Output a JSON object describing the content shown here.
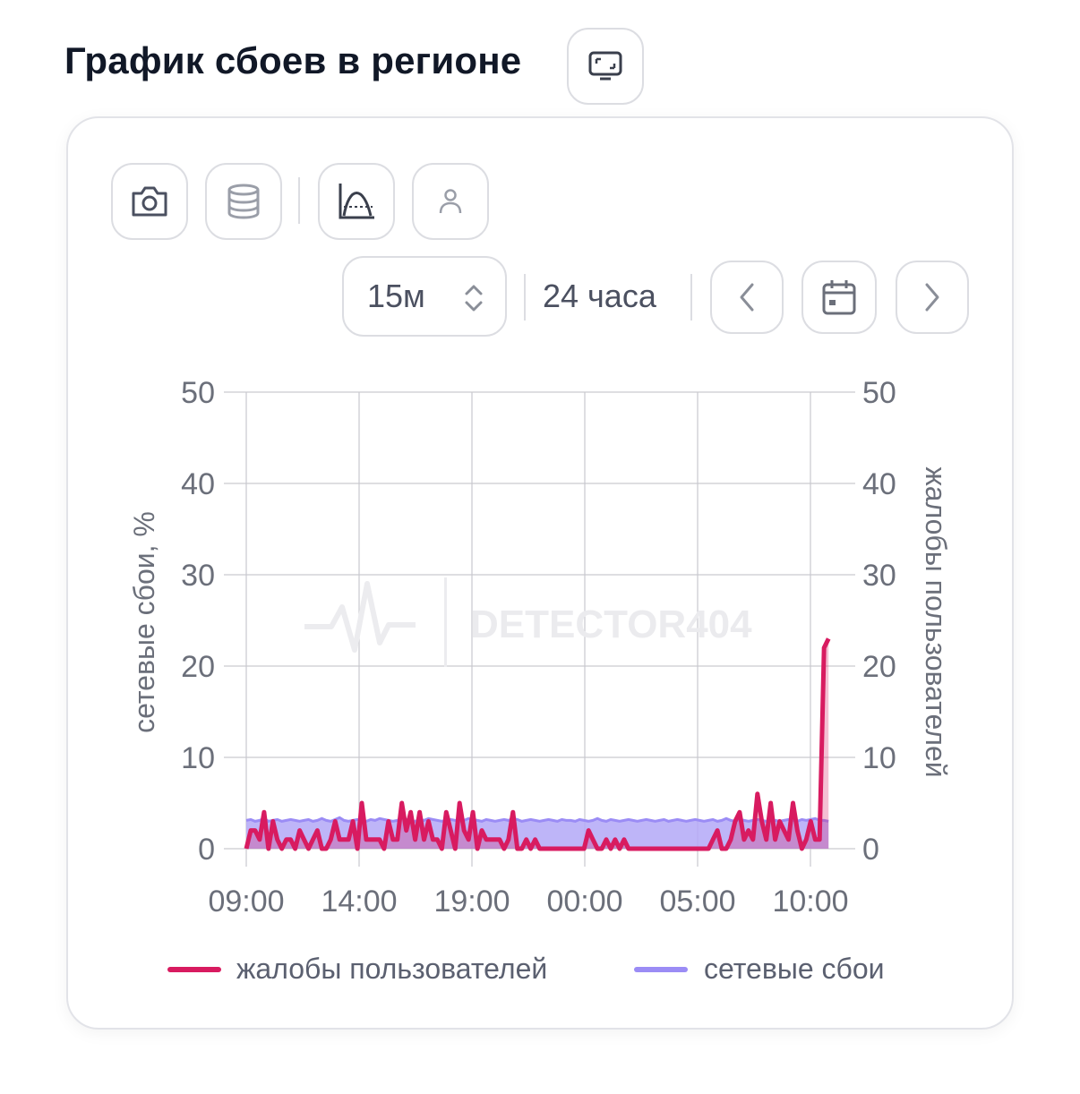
{
  "page": {
    "title": "График сбоев в регионе"
  },
  "toolbar": {
    "period_select": "15м",
    "range_label": "24 часа"
  },
  "icons": {
    "fullscreen": "monitor-icon",
    "screenshot": "camera-icon",
    "data": "database-icon",
    "chart_mode": "chart-curve-icon",
    "user": "user-icon",
    "prev": "chevron-left-icon",
    "calendar": "calendar-icon",
    "next": "chevron-right-icon",
    "select_arrows": "chevron-updown-icon"
  },
  "watermark": "DETECTOR404",
  "colors": {
    "complaints": "#d81b60",
    "outages": "#9b8cf5",
    "outages_fill": "#b3a8f7",
    "grid": "#c9c9cf",
    "text_muted": "#6b6f7a"
  },
  "chart_data": {
    "type": "line",
    "x_tick_labels": [
      "09:00",
      "14:00",
      "19:00",
      "00:00",
      "05:00",
      "10:00"
    ],
    "x_range_hours": [
      0,
      25.8
    ],
    "y_left": {
      "label": "сетевые сбои, %",
      "ylim": [
        0,
        50
      ],
      "ticks": [
        "0",
        "10",
        "20",
        "30",
        "40",
        "50"
      ]
    },
    "y_right": {
      "label": "жалобы пользователей",
      "ylim": [
        0,
        50
      ],
      "ticks": [
        "0",
        "10",
        "20",
        "30",
        "40",
        "50"
      ]
    },
    "grid": true,
    "legend_placement": "bottom",
    "series": [
      {
        "name": "жалобы пользователей",
        "axis": "right",
        "style": "line",
        "values": [
          0,
          2,
          2,
          1,
          4,
          0,
          3,
          1,
          0,
          1,
          1,
          0,
          2,
          1,
          0,
          1,
          2,
          0,
          0,
          1,
          3,
          1,
          1,
          1,
          3,
          0,
          5,
          1,
          1,
          1,
          1,
          0,
          3,
          1,
          1,
          5,
          2,
          4,
          1,
          4,
          1,
          3,
          1,
          1,
          0,
          4,
          2,
          0,
          5,
          2,
          1,
          4,
          0,
          2,
          1,
          1,
          1,
          1,
          0,
          1,
          4,
          0,
          0,
          1,
          0,
          1,
          0,
          0,
          0,
          0,
          0,
          0,
          0,
          0,
          0,
          0,
          0,
          2,
          1,
          0,
          0,
          1,
          0,
          1,
          0,
          1,
          0,
          0,
          0,
          0,
          0,
          0,
          0,
          0,
          0,
          0,
          0,
          0,
          0,
          0,
          0,
          0,
          0,
          0,
          0,
          1,
          2,
          0,
          0,
          1,
          3,
          4,
          1,
          2,
          1,
          6,
          3,
          1,
          5,
          1,
          3,
          2,
          1,
          5,
          2,
          0,
          1,
          3,
          1,
          1,
          22,
          23
        ]
      },
      {
        "name": "сетевые сбои",
        "axis": "left",
        "style": "area",
        "values": [
          3.1,
          3.2,
          3.0,
          3.1,
          3.3,
          3.0,
          3.1,
          3.2,
          3.0,
          3.1,
          3.2,
          3.1,
          3.0,
          3.1,
          3.2,
          3.0,
          3.1,
          3.3,
          3.1,
          3.0,
          3.2,
          3.4,
          3.1,
          3.0,
          3.1,
          3.2,
          3.1,
          3.0,
          3.2,
          3.1,
          3.3,
          3.2,
          3.1,
          3.0,
          3.1,
          3.3,
          3.2,
          3.1,
          3.0,
          3.2,
          3.1,
          3.3,
          3.2,
          3.1,
          3.0,
          3.1,
          3.2,
          3.1,
          3.0,
          3.1,
          3.3,
          3.2,
          3.1,
          3.0,
          3.2,
          3.1,
          3.0,
          3.1,
          3.2,
          3.1,
          3.3,
          3.2,
          3.0,
          3.1,
          3.2,
          3.1,
          3.0,
          3.1,
          3.2,
          3.1,
          3.0,
          3.2,
          3.1,
          3.1,
          3.0,
          3.2,
          3.1,
          3.0,
          3.1,
          3.3,
          3.1,
          3.0,
          3.2,
          3.1,
          3.0,
          3.1,
          3.2,
          3.1,
          3.0,
          3.1,
          3.2,
          3.1,
          3.0,
          3.1,
          3.2,
          3.0,
          3.1,
          3.2,
          3.1,
          3.0,
          3.1,
          3.2,
          3.1,
          3.0,
          3.1,
          3.2,
          3.0,
          3.1,
          3.3,
          3.1,
          3.0,
          3.2,
          3.1,
          3.0,
          3.1,
          3.2,
          3.1,
          3.0,
          3.2,
          3.1,
          3.0,
          3.1,
          3.2,
          3.1,
          3.0,
          3.2,
          3.1,
          3.2,
          3.3,
          3.1,
          3.1,
          3.0
        ]
      }
    ]
  },
  "legend": {
    "complaints_label": "жалобы пользователей",
    "outages_label": "сетевые сбои"
  }
}
